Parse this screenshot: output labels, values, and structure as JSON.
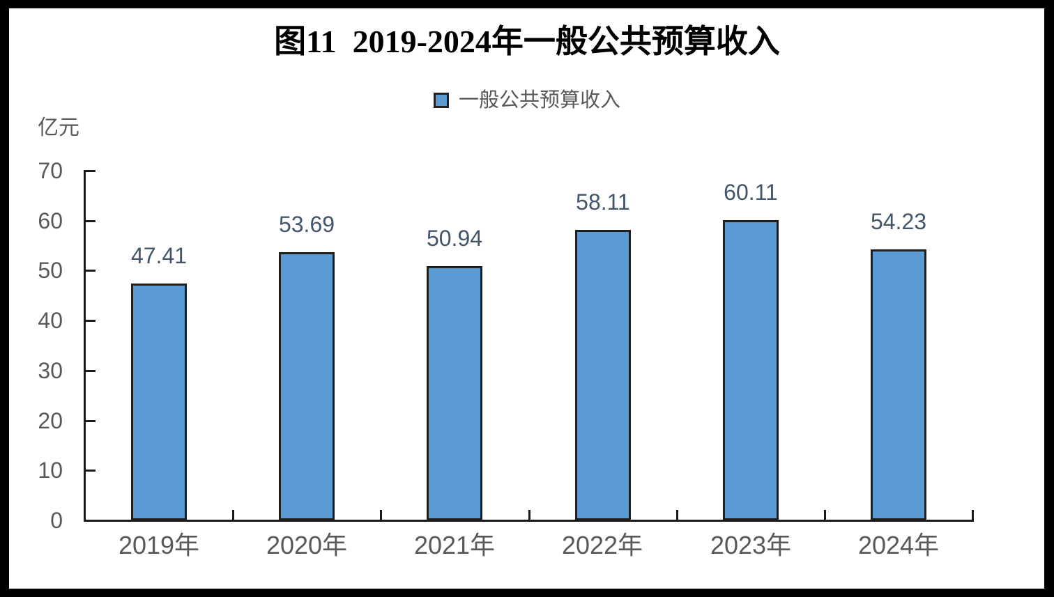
{
  "figure": {
    "title": "图11  2019-2024年一般公共预算收入"
  },
  "legend": {
    "label": "一般公共预算收入",
    "swatch_icon": "blue-square-icon"
  },
  "chart_data": {
    "type": "bar",
    "title": "图11  2019-2024年一般公共预算收入",
    "ylabel": "亿元",
    "xlabel": "",
    "categories": [
      "2019年",
      "2020年",
      "2021年",
      "2022年",
      "2023年",
      "2024年"
    ],
    "series": [
      {
        "name": "一般公共预算收入",
        "values": [
          47.41,
          53.69,
          50.94,
          58.11,
          60.11,
          54.23
        ]
      }
    ],
    "data_labels": [
      "47.41",
      "53.69",
      "50.94",
      "58.11",
      "60.11",
      "54.23"
    ],
    "ylim": [
      0,
      70
    ],
    "yticks": [
      0,
      10,
      20,
      30,
      40,
      50,
      60,
      70
    ],
    "grid": false,
    "legend_position": "top-center",
    "colors": {
      "bar_fill": "#5b9bd5",
      "bar_border": "#1f1f1f",
      "axis_line": "#1a1a1a",
      "data_label_text": "#44546a",
      "axis_text": "#595959",
      "title_text": "#000000",
      "page_border": "#000000",
      "background": "#ffffff"
    }
  }
}
